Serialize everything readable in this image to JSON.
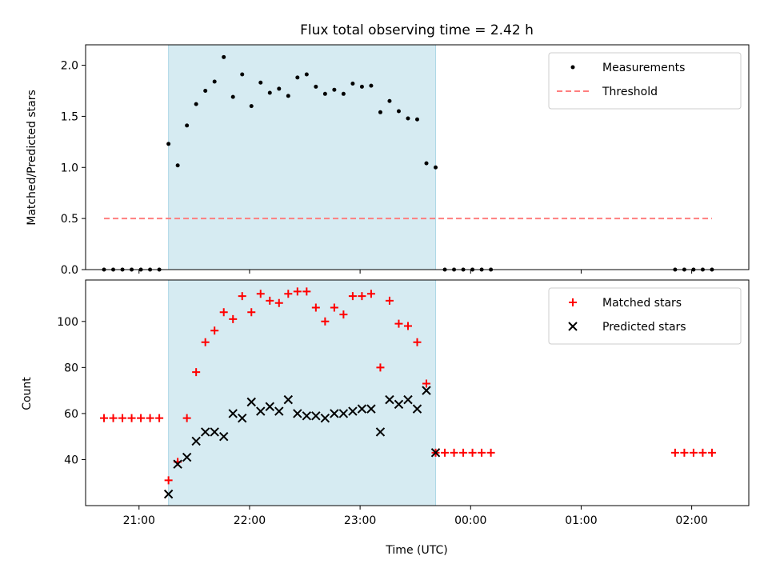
{
  "figure": {
    "title": "Flux total observing time = 2.42 h",
    "xlabel": "Time (UTC)",
    "xtick_labels": [
      "21:00",
      "22:00",
      "23:00",
      "00:00",
      "01:00",
      "02:00"
    ]
  },
  "colors": {
    "shade": "#add8e6",
    "threshold": "#ff7f7f",
    "matched": "#ff0000",
    "predicted": "#000000",
    "measurement": "#000000"
  },
  "chart_data": [
    {
      "type": "scatter",
      "panel": "top",
      "ylabel": "Matched/Predicted stars",
      "xlim": [
        "20:31",
        "02:31"
      ],
      "ylim": [
        0,
        2.2
      ],
      "yticks": [
        0.0,
        0.5,
        1.0,
        1.5,
        2.0
      ],
      "ytick_labels": [
        "0.0",
        "0.5",
        "1.0",
        "1.5",
        "2.0"
      ],
      "shaded_interval": [
        "21:16",
        "23:41"
      ],
      "threshold": {
        "name": "Threshold",
        "y": 0.5,
        "x_range": [
          "20:41",
          "02:11"
        ]
      },
      "legend": {
        "position": "top-right",
        "entries": [
          "Measurements",
          "Threshold"
        ]
      },
      "series": [
        {
          "name": "Measurements",
          "x": [
            "20:41",
            "20:46",
            "20:51",
            "20:56",
            "21:01",
            "21:06",
            "21:11",
            "21:16",
            "21:21",
            "21:26",
            "21:31",
            "21:36",
            "21:41",
            "21:46",
            "21:51",
            "21:56",
            "22:01",
            "22:06",
            "22:11",
            "22:16",
            "22:21",
            "22:26",
            "22:31",
            "22:36",
            "22:41",
            "22:46",
            "22:51",
            "22:56",
            "23:01",
            "23:06",
            "23:11",
            "23:16",
            "23:21",
            "23:26",
            "23:31",
            "23:36",
            "23:41",
            "23:46",
            "23:51",
            "23:56",
            "00:01",
            "00:06",
            "00:11",
            "01:51",
            "01:56",
            "02:01",
            "02:06",
            "02:11"
          ],
          "y": [
            0,
            0,
            0,
            0,
            0,
            0,
            0,
            1.23,
            1.02,
            1.41,
            1.62,
            1.75,
            1.84,
            2.08,
            1.69,
            1.91,
            1.6,
            1.83,
            1.73,
            1.77,
            1.7,
            1.88,
            1.91,
            1.79,
            1.72,
            1.76,
            1.72,
            1.82,
            1.79,
            1.8,
            1.54,
            1.65,
            1.55,
            1.48,
            1.47,
            1.04,
            1.0,
            0,
            0,
            0,
            0,
            0,
            0,
            0,
            0,
            0,
            0,
            0
          ]
        }
      ]
    },
    {
      "type": "scatter",
      "panel": "bottom",
      "ylabel": "Count",
      "xlim": [
        "20:31",
        "02:31"
      ],
      "ylim": [
        20,
        118
      ],
      "yticks": [
        40,
        60,
        80,
        100
      ],
      "ytick_labels": [
        "40",
        "60",
        "80",
        "100"
      ],
      "shaded_interval": [
        "21:16",
        "23:41"
      ],
      "legend": {
        "position": "top-right",
        "entries": [
          "Matched stars",
          "Predicted stars"
        ]
      },
      "series": [
        {
          "name": "Matched stars",
          "marker": "plus",
          "x": [
            "20:41",
            "20:46",
            "20:51",
            "20:56",
            "21:01",
            "21:06",
            "21:11",
            "21:16",
            "21:21",
            "21:26",
            "21:31",
            "21:36",
            "21:41",
            "21:46",
            "21:51",
            "21:56",
            "22:01",
            "22:06",
            "22:11",
            "22:16",
            "22:21",
            "22:26",
            "22:31",
            "22:36",
            "22:41",
            "22:46",
            "22:51",
            "22:56",
            "23:01",
            "23:06",
            "23:11",
            "23:16",
            "23:21",
            "23:26",
            "23:31",
            "23:36",
            "23:41",
            "23:46",
            "23:51",
            "23:56",
            "00:01",
            "00:06",
            "00:11",
            "01:51",
            "01:56",
            "02:01",
            "02:06",
            "02:11"
          ],
          "y": [
            58,
            58,
            58,
            58,
            58,
            58,
            58,
            31,
            39,
            58,
            78,
            91,
            96,
            104,
            101,
            111,
            104,
            112,
            109,
            108,
            112,
            113,
            113,
            106,
            100,
            106,
            103,
            111,
            111,
            112,
            80,
            109,
            99,
            98,
            91,
            73,
            43,
            43,
            43,
            43,
            43,
            43,
            43,
            43,
            43,
            43,
            43,
            43
          ]
        },
        {
          "name": "Predicted stars",
          "marker": "x",
          "x": [
            "21:16",
            "21:21",
            "21:26",
            "21:31",
            "21:36",
            "21:41",
            "21:46",
            "21:51",
            "21:56",
            "22:01",
            "22:06",
            "22:11",
            "22:16",
            "22:21",
            "22:26",
            "22:31",
            "22:36",
            "22:41",
            "22:46",
            "22:51",
            "22:56",
            "23:01",
            "23:06",
            "23:11",
            "23:16",
            "23:21",
            "23:26",
            "23:31",
            "23:36",
            "23:41"
          ],
          "y": [
            25,
            38,
            41,
            48,
            52,
            52,
            50,
            60,
            58,
            65,
            61,
            63,
            61,
            66,
            60,
            59,
            59,
            58,
            60,
            60,
            61,
            62,
            62,
            52,
            66,
            64,
            66,
            62,
            70,
            43
          ]
        }
      ]
    }
  ]
}
